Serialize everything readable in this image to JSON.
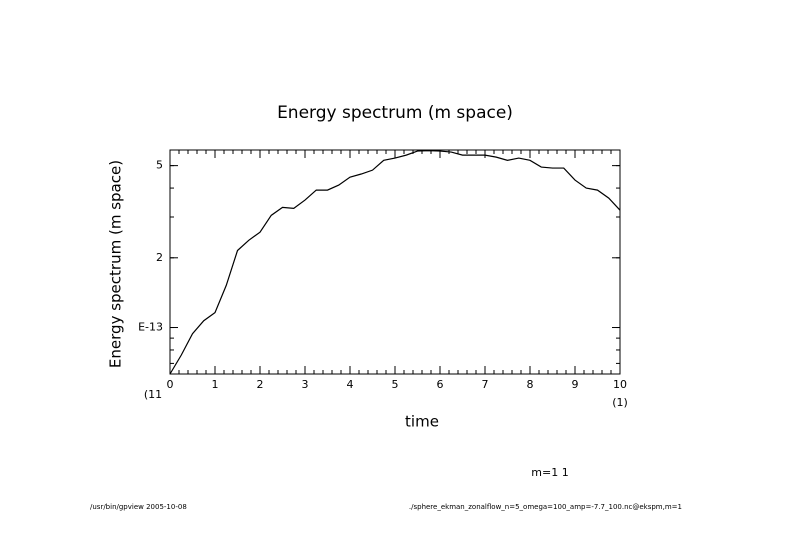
{
  "chart_data": {
    "type": "line",
    "title": "Energy spectrum (m space)",
    "x_label": "time",
    "y_label": "Energy spectrum (m space)",
    "x": [
      0,
      0.25,
      0.5,
      0.75,
      1,
      1.25,
      1.5,
      1.75,
      2,
      2.25,
      2.5,
      2.75,
      3,
      3.25,
      3.5,
      3.75,
      4,
      4.25,
      4.5,
      4.75,
      5,
      5.25,
      5.5,
      5.75,
      6,
      6.25,
      6.5,
      6.75,
      7,
      7.25,
      7.5,
      7.75,
      8,
      8.25,
      8.5,
      8.75,
      9,
      9.25,
      9.5,
      9.75,
      10
    ],
    "series": [
      {
        "name": "m=1 1",
        "color": "#000000",
        "values": [
          0.63,
          0.76,
          0.94,
          1.07,
          1.16,
          1.52,
          2.15,
          2.38,
          2.58,
          3.05,
          3.3,
          3.27,
          3.55,
          3.92,
          3.92,
          4.12,
          4.46,
          4.6,
          4.78,
          5.27,
          5.39,
          5.55,
          5.78,
          5.8,
          5.78,
          5.72,
          5.55,
          5.55,
          5.55,
          5.44,
          5.27,
          5.39,
          5.27,
          4.93,
          4.88,
          4.88,
          4.33,
          4.0,
          3.92,
          3.62,
          3.21
        ]
      }
    ],
    "xlim": [
      0,
      10
    ],
    "xticks": [
      0,
      1,
      2,
      3,
      4,
      5,
      6,
      7,
      8,
      9,
      10
    ],
    "ylim": [
      0.63,
      5.84
    ],
    "yticks": [
      5,
      2,
      {
        "value": 1,
        "label": "E-13"
      }
    ],
    "log_y": true,
    "x_unit_left": "(11",
    "x_unit_right": "(1)",
    "footer_left": "/usr/bin/gpview  2005-10-08",
    "footer_right": "./sphere_ekman_zonalflow_n=5_omega=100_amp=-7.7_100.nc@ekspm,m=1"
  }
}
